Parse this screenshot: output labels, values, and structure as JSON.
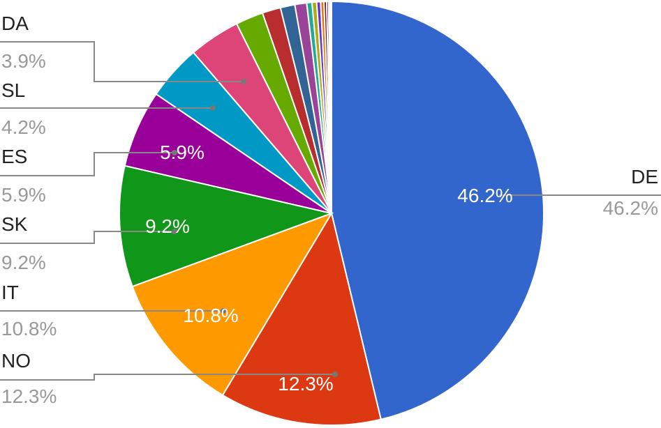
{
  "chart_data": {
    "type": "pie",
    "title": "",
    "slices": [
      {
        "label": "DE",
        "value": 46.2,
        "display": "46.2%",
        "color": "#3366cc",
        "inner_label": true
      },
      {
        "label": "NO",
        "value": 12.3,
        "display": "12.3%",
        "color": "#dc3912",
        "inner_label": true
      },
      {
        "label": "IT",
        "value": 10.8,
        "display": "10.8%",
        "color": "#ff9900",
        "inner_label": true
      },
      {
        "label": "SK",
        "value": 9.2,
        "display": "9.2%",
        "color": "#109618",
        "inner_label": true
      },
      {
        "label": "ES",
        "value": 5.9,
        "display": "5.9%",
        "color": "#990099",
        "inner_label": true
      },
      {
        "label": "SL",
        "value": 4.2,
        "display": "4.2%",
        "color": "#0099c6",
        "inner_label": false
      },
      {
        "label": "DA",
        "value": 3.9,
        "display": "3.9%",
        "color": "#dd4477",
        "inner_label": false
      },
      {
        "value": 2.1,
        "color": "#66aa00"
      },
      {
        "value": 1.4,
        "color": "#b82e2e"
      },
      {
        "value": 1.1,
        "color": "#316395"
      },
      {
        "value": 0.9,
        "color": "#994499"
      },
      {
        "value": 0.4,
        "color": "#22aa99"
      },
      {
        "value": 0.35,
        "color": "#aaaa11"
      },
      {
        "value": 0.3,
        "color": "#6633cc"
      },
      {
        "value": 0.25,
        "color": "#e67300"
      },
      {
        "value": 0.2,
        "color": "#8b0707"
      },
      {
        "value": 0.15,
        "color": "#651067"
      },
      {
        "value": 0.12,
        "color": "#329262"
      },
      {
        "value": 0.1,
        "color": "#5574a6"
      }
    ],
    "legend": "none",
    "start_angle_deg": 0,
    "direction": "clockwise"
  }
}
